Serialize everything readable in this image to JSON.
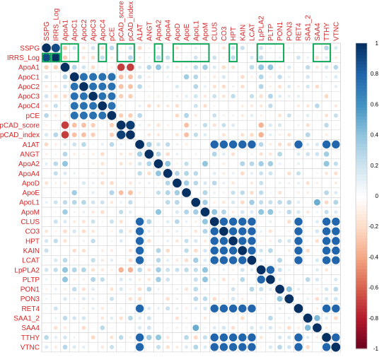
{
  "chart_data": {
    "type": "heatmap",
    "title": "",
    "variables": [
      "SSPG",
      "IRRS_Log",
      "ApoA1",
      "ApoC1",
      "ApoC2",
      "ApoC3",
      "ApoC4",
      "pCE",
      "pCAD_score",
      "pCAD_index",
      "A1AT",
      "ANGT",
      "ApoA2",
      "ApoA4",
      "ApoD",
      "ApoE",
      "ApoL1",
      "ApoM",
      "CLUS",
      "CO3",
      "HPT",
      "KAIN",
      "LCAT",
      "LpPLA2",
      "PLTP",
      "PON1",
      "PON3",
      "RET4",
      "SAA1_2",
      "SAA4",
      "TTHY",
      "VTNC"
    ],
    "value_range": [
      -1,
      1
    ],
    "colorbar_ticks": [
      1,
      0.8,
      0.6,
      0.4,
      0.2,
      0,
      -0.2,
      -0.4,
      -0.6,
      -0.8,
      -1
    ],
    "colors": {
      "positive": "#053061",
      "negative": "#67001f",
      "neutral": "#ffffff",
      "label": "#d62728",
      "highlight": "#00a651"
    },
    "highlighted_columns": [
      "ApoA1",
      "ApoC1",
      "ApoC4",
      "pCAD_score",
      "pCAD_index",
      "ApoA2",
      "ApoD",
      "ApoE",
      "ApoL1",
      "ApoM",
      "HPT",
      "LpPLA2",
      "PLTP",
      "PON1",
      "SAA4",
      "TTHY"
    ],
    "highlighted_row_cells": [
      [
        "IRRS_Log",
        "SSPG"
      ],
      [
        "IRRS_Log",
        "IRRS_Log"
      ]
    ],
    "groups": [
      {
        "members": [
          "SSPG",
          "IRRS_Log"
        ],
        "r": 0.9
      },
      {
        "members": [
          "ApoC1",
          "ApoC2",
          "ApoC3",
          "ApoC4",
          "pCE"
        ],
        "r": 0.75
      },
      {
        "members": [
          "pCAD_score",
          "pCAD_index"
        ],
        "r": 0.95
      },
      {
        "members": [
          "A1AT",
          "CLUS",
          "CO3",
          "HPT",
          "KAIN",
          "LCAT",
          "RET4",
          "TTHY",
          "VTNC"
        ],
        "r": 0.8
      },
      {
        "members": [
          "LpPLA2",
          "PLTP"
        ],
        "r": 0.8
      }
    ],
    "pairs": [
      [
        "ApoA1",
        "pCAD_score",
        -0.7
      ],
      [
        "ApoA1",
        "pCAD_index",
        -0.7
      ],
      [
        "ApoA1",
        "ApoC1",
        0.3
      ],
      [
        "ApoA1",
        "ApoA2",
        0.4
      ],
      [
        "ApoA1",
        "ApoM",
        0.35
      ],
      [
        "ApoA1",
        "LpPLA2",
        0.4
      ],
      [
        "ApoA1",
        "PLTP",
        0.4
      ],
      [
        "SSPG",
        "ApoA1",
        -0.25
      ],
      [
        "IRRS_Log",
        "ApoA1",
        -0.25
      ],
      [
        "SSPG",
        "LpPLA2",
        0.2
      ],
      [
        "IRRS_Log",
        "HPT",
        0.25
      ],
      [
        "ApoA2",
        "ApoA4",
        0.4
      ],
      [
        "ApoA2",
        "ApoM",
        0.4
      ],
      [
        "ApoA2",
        "PLTP",
        0.35
      ],
      [
        "ApoA2",
        "LpPLA2",
        0.35
      ],
      [
        "ApoM",
        "ApoL1",
        0.35
      ],
      [
        "ApoM",
        "LpPLA2",
        0.4
      ],
      [
        "ApoM",
        "PLTP",
        0.4
      ],
      [
        "ApoM",
        "ApoE",
        0.3
      ],
      [
        "CLUS",
        "ApoM",
        0.4
      ],
      [
        "ApoM",
        "CO3",
        0.3
      ],
      [
        "ApoL1",
        "LCAT",
        0.35
      ],
      [
        "ApoL1",
        "SAA4",
        0.5
      ],
      [
        "ApoA4",
        "ApoE",
        0.3
      ],
      [
        "ApoE",
        "ApoC1",
        0.35
      ],
      [
        "ApoE",
        "pCE",
        0.3
      ],
      [
        "ApoC1",
        "pCAD_score",
        -0.3
      ],
      [
        "ApoC2",
        "pCAD_score",
        -0.3
      ],
      [
        "ApoC3",
        "pCAD_score",
        -0.25
      ],
      [
        "pCE",
        "pCAD_score",
        -0.25
      ],
      [
        "ApoC1",
        "pCAD_index",
        -0.3
      ],
      [
        "ApoC2",
        "pCAD_index",
        -0.3
      ],
      [
        "ApoC3",
        "pCAD_index",
        -0.25
      ],
      [
        "pCE",
        "pCAD_index",
        -0.25
      ],
      [
        "pCAD_score",
        "ApoE",
        -0.3
      ],
      [
        "pCAD_index",
        "ApoE",
        -0.3
      ],
      [
        "pCAD_score",
        "LpPLA2",
        -0.35
      ],
      [
        "pCAD_index",
        "LpPLA2",
        -0.35
      ],
      [
        "ApoC1",
        "LpPLA2",
        0.3
      ],
      [
        "ApoC2",
        "LpPLA2",
        0.3
      ],
      [
        "ApoC3",
        "PLTP",
        0.3
      ],
      [
        "ApoC4",
        "PLTP",
        0.25
      ],
      [
        "A1AT",
        "ANGT",
        0.35
      ],
      [
        "ANGT",
        "ApoA2",
        0.3
      ],
      [
        "ANGT",
        "TTHY",
        0.35
      ],
      [
        "ANGT",
        "CLUS",
        0.3
      ],
      [
        "SAA1_2",
        "SAA4",
        0.45
      ],
      [
        "PON1",
        "PON3",
        0.4
      ],
      [
        "ApoD",
        "ApoA4",
        0.3
      ],
      [
        "ApoD",
        "ApoE",
        0.35
      ],
      [
        "A1AT",
        "ApoA2",
        0.2
      ],
      [
        "KAIN",
        "ApoA2",
        0.3
      ],
      [
        "TTHY",
        "ApoA2",
        0.4
      ],
      [
        "VTNC",
        "ApoL1",
        0.3
      ]
    ],
    "grid": true,
    "colorbar_position": "right"
  }
}
